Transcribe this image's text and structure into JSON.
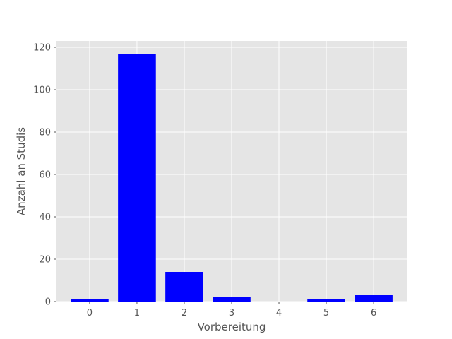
{
  "chart_data": {
    "type": "bar",
    "title": "",
    "xlabel": "Vorbereitung",
    "ylabel": "Anzahl an Studis",
    "categories": [
      "0",
      "1",
      "2",
      "3",
      "4",
      "5",
      "6"
    ],
    "values": [
      1,
      117,
      14,
      2,
      0,
      1,
      3
    ],
    "ylim": [
      0,
      123
    ],
    "yticks": [
      "0",
      "20",
      "40",
      "60",
      "80",
      "100",
      "120"
    ],
    "grid": true,
    "legend": "none",
    "colors": {
      "bar": "#0000ff",
      "plot_background": "#e5e5e5",
      "grid": "#ffffff",
      "text": "#555555"
    }
  }
}
